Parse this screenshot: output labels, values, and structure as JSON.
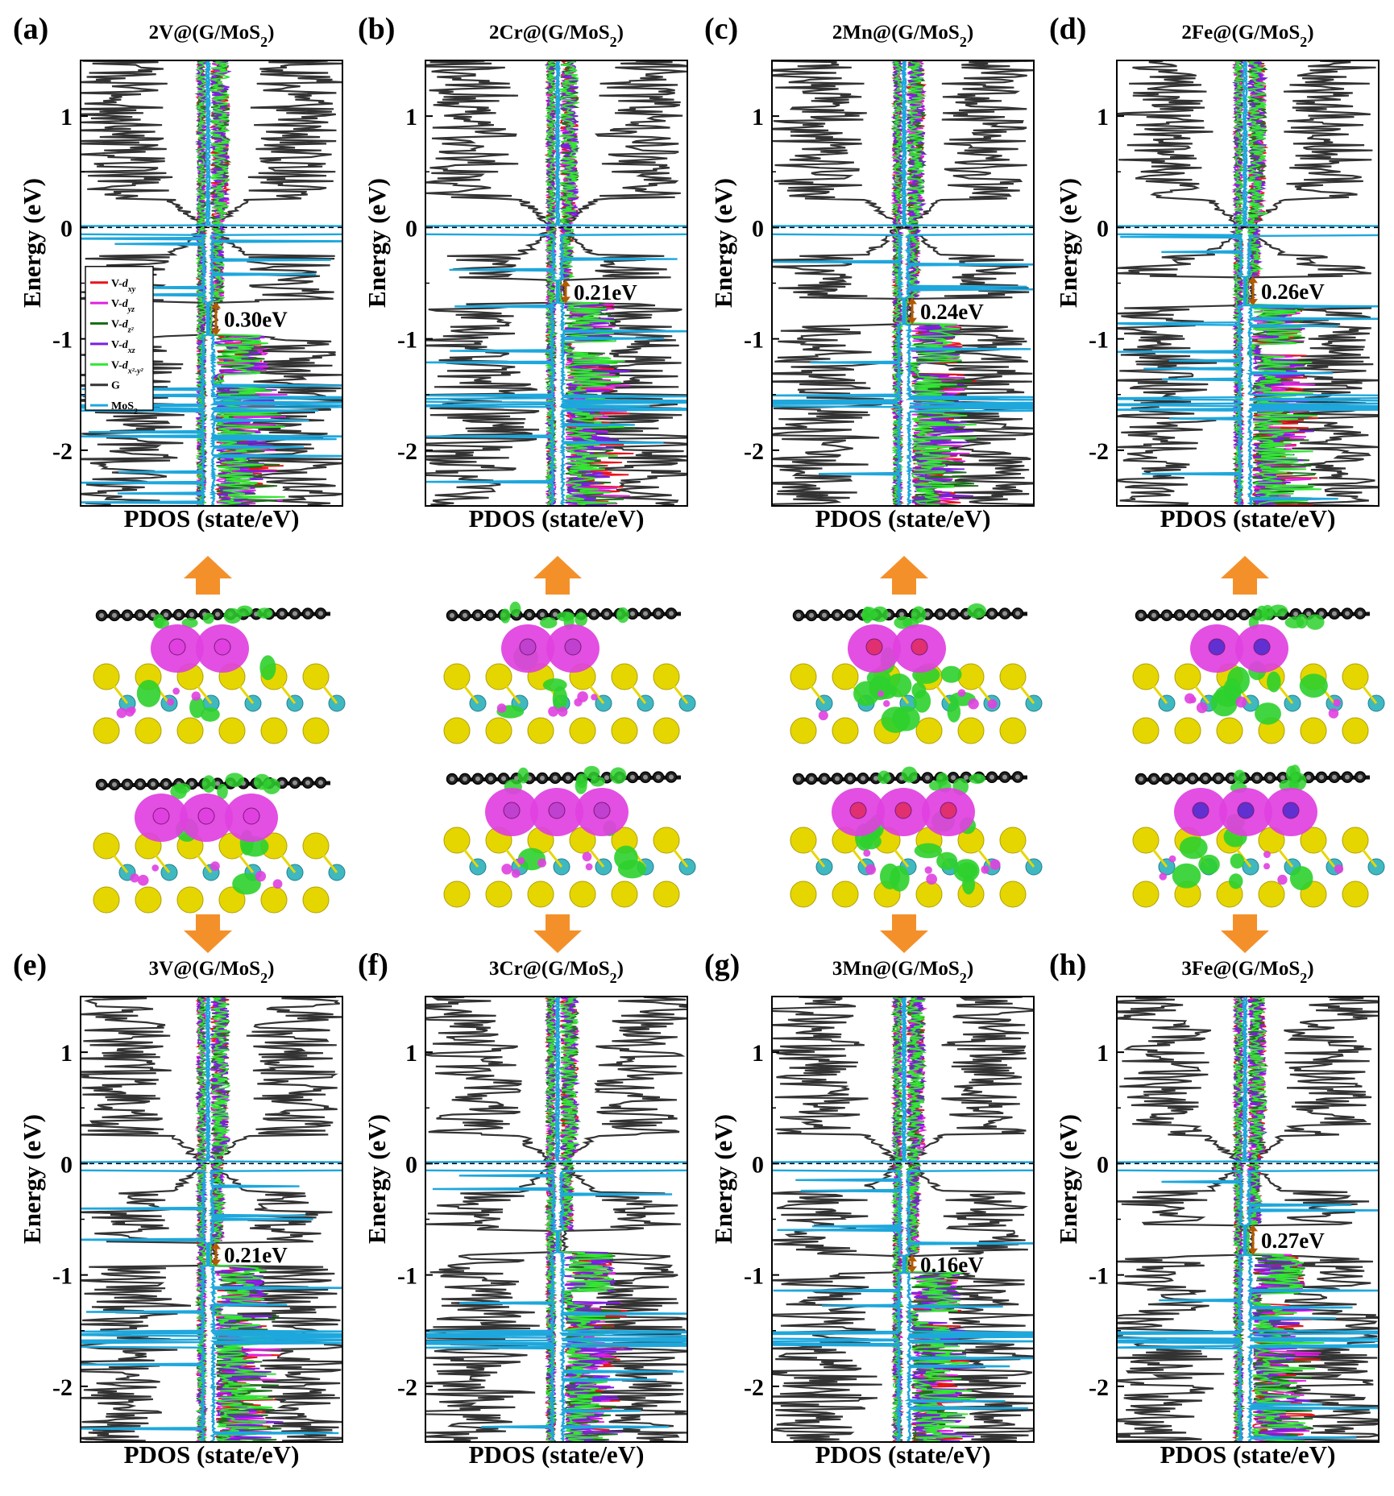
{
  "chart_data": [
    {
      "type": "line",
      "panel_label": "(a)",
      "title": "2V@(G/MoS2)",
      "title_main": "2V@(G/MoS",
      "title_sub": "2",
      "title_tail": ")",
      "xlabel": "PDOS (state/eV)",
      "ylabel": "Energy (eV)",
      "ylim": [
        -2.5,
        1.5
      ],
      "yticks": [
        {
          "value": -2,
          "label": "-2"
        },
        {
          "value": -1,
          "label": "-1"
        },
        {
          "value": 0,
          "label": "0"
        },
        {
          "value": 1,
          "label": "1"
        }
      ],
      "fermi_level": 0,
      "gap": {
        "label": "0.30eV",
        "from": -0.97,
        "to": -0.67
      },
      "legend": {
        "placement": "middle-left",
        "entries": [
          {
            "name": "V-dxy",
            "base": "V-",
            "orbital": "d",
            "sub": "xy",
            "color": "#e8141b"
          },
          {
            "name": "V-dyz",
            "base": "V-",
            "orbital": "d",
            "sub": "yz",
            "color": "#e020e0"
          },
          {
            "name": "V-dz2",
            "base": "V-",
            "orbital": "d",
            "sub": "z²",
            "color": "#1b6e1b"
          },
          {
            "name": "V-dxz",
            "base": "V-",
            "orbital": "d",
            "sub": "xz",
            "color": "#7b1fe0"
          },
          {
            "name": "V-dx2-y2",
            "base": "V-",
            "orbital": "d",
            "sub": "x²-y²",
            "color": "#33e633"
          },
          {
            "name": "G",
            "base": "G",
            "orbital": "",
            "sub": "",
            "color": "#333333"
          },
          {
            "name": "MoS2",
            "base": "MoS",
            "orbital": "",
            "sub": "2",
            "color": "#1ea7dc"
          }
        ]
      }
    },
    {
      "type": "line",
      "panel_label": "(b)",
      "title": "2Cr@(G/MoS2)",
      "title_main": "2Cr@(G/MoS",
      "title_sub": "2",
      "title_tail": ")",
      "xlabel": "PDOS (state/eV)",
      "ylabel": "Energy (eV)",
      "ylim": [
        -2.5,
        1.5
      ],
      "yticks": [
        {
          "value": -2,
          "label": "-2"
        },
        {
          "value": -1,
          "label": "-1"
        },
        {
          "value": 0,
          "label": "0"
        },
        {
          "value": 1,
          "label": "1"
        }
      ],
      "fermi_level": 0,
      "gap": {
        "label": "0.21eV",
        "from": -0.68,
        "to": -0.47
      }
    },
    {
      "type": "line",
      "panel_label": "(c)",
      "title": "2Mn@(G/MoS2)",
      "title_main": "2Mn@(G/MoS",
      "title_sub": "2",
      "title_tail": ")",
      "xlabel": "PDOS (state/eV)",
      "ylabel": "Energy (eV)",
      "ylim": [
        -2.5,
        1.5
      ],
      "yticks": [
        {
          "value": -2,
          "label": "-2"
        },
        {
          "value": -1,
          "label": "-1"
        },
        {
          "value": 0,
          "label": "0"
        },
        {
          "value": 1,
          "label": "1"
        }
      ],
      "fermi_level": 0,
      "gap": {
        "label": "0.24eV",
        "from": -0.87,
        "to": -0.63
      }
    },
    {
      "type": "line",
      "panel_label": "(d)",
      "title": "2Fe@(G/MoS2)",
      "title_main": "2Fe@(G/MoS",
      "title_sub": "2",
      "title_tail": ")",
      "xlabel": "PDOS (state/eV)",
      "ylabel": "Energy (eV)",
      "ylim": [
        -2.5,
        1.5
      ],
      "yticks": [
        {
          "value": -2,
          "label": "-2"
        },
        {
          "value": -1,
          "label": "-1"
        },
        {
          "value": 0,
          "label": "0"
        },
        {
          "value": 1,
          "label": "1"
        }
      ],
      "fermi_level": 0,
      "gap": {
        "label": "0.26eV",
        "from": -0.7,
        "to": -0.44
      }
    },
    {
      "type": "line",
      "panel_label": "(e)",
      "title": "3V@(G/MoS2)",
      "title_main": "3V@(G/MoS",
      "title_sub": "2",
      "title_tail": ")",
      "xlabel": "PDOS (state/eV)",
      "ylabel": "Energy (eV)",
      "ylim": [
        -2.5,
        1.5
      ],
      "yticks": [
        {
          "value": -2,
          "label": "-2"
        },
        {
          "value": -1,
          "label": "-1"
        },
        {
          "value": 0,
          "label": "0"
        },
        {
          "value": 1,
          "label": "1"
        }
      ],
      "fermi_level": 0,
      "gap": {
        "label": "0.21eV",
        "from": -0.92,
        "to": -0.71
      }
    },
    {
      "type": "line",
      "panel_label": "(f)",
      "title": "3Cr@(G/MoS2)",
      "title_main": "3Cr@(G/MoS",
      "title_sub": "2",
      "title_tail": ")",
      "xlabel": "PDOS (state/eV)",
      "ylabel": "Energy (eV)",
      "ylim": [
        -2.5,
        1.5
      ],
      "yticks": [
        {
          "value": -2,
          "label": "-2"
        },
        {
          "value": -1,
          "label": "-1"
        },
        {
          "value": 0,
          "label": "0"
        },
        {
          "value": 1,
          "label": "1"
        }
      ],
      "fermi_level": 0
    },
    {
      "type": "line",
      "panel_label": "(g)",
      "title": "3Mn@(G/MoS2)",
      "title_main": "3Mn@(G/MoS",
      "title_sub": "2",
      "title_tail": ")",
      "xlabel": "PDOS (state/eV)",
      "ylabel": "Energy (eV)",
      "ylim": [
        -2.5,
        1.5
      ],
      "yticks": [
        {
          "value": -2,
          "label": "-2"
        },
        {
          "value": -1,
          "label": "-1"
        },
        {
          "value": 0,
          "label": "0"
        },
        {
          "value": 1,
          "label": "1"
        }
      ],
      "fermi_level": 0,
      "gap": {
        "label": "0.16eV",
        "from": -0.98,
        "to": -0.82
      }
    },
    {
      "type": "line",
      "panel_label": "(h)",
      "title": "3Fe@(G/MoS2)",
      "title_main": "3Fe@(G/MoS",
      "title_sub": "2",
      "title_tail": ")",
      "xlabel": "PDOS (state/eV)",
      "ylabel": "Energy (eV)",
      "ylim": [
        -2.5,
        1.5
      ],
      "yticks": [
        {
          "value": -2,
          "label": "-2"
        },
        {
          "value": -1,
          "label": "-1"
        },
        {
          "value": 0,
          "label": "0"
        },
        {
          "value": 1,
          "label": "1"
        }
      ],
      "fermi_level": 0,
      "gap": {
        "label": "0.27eV",
        "from": -0.82,
        "to": -0.55
      }
    }
  ],
  "colors": {
    "graphene": "#333333",
    "mos2": "#1ea7dc",
    "dxy": "#e8141b",
    "dyz": "#e020e0",
    "dz2": "#1b6e1b",
    "dxz": "#7b1fe0",
    "dx2y2": "#33e633",
    "gap_arrow": "#b35a00",
    "arrow": "#f4902a",
    "charge_accumulation": "#e040e0",
    "charge_depletion": "#2ed02e",
    "sulfur": "#e6d600",
    "molybdenum": "#40b8c0",
    "carbon": "#111111"
  },
  "structures": [
    {
      "panel": "2V",
      "view": "top-row",
      "metal_count": 2,
      "metal_color": "#e040e0",
      "depletion": "low"
    },
    {
      "panel": "2Cr",
      "view": "top-row",
      "metal_count": 2,
      "metal_color": "#c040d0",
      "depletion": "low"
    },
    {
      "panel": "2Mn",
      "view": "top-row",
      "metal_count": 2,
      "metal_color": "#e03070",
      "depletion": "high"
    },
    {
      "panel": "2Fe",
      "view": "top-row",
      "metal_count": 2,
      "metal_color": "#6030d0",
      "depletion": "mid"
    },
    {
      "panel": "3V",
      "view": "bottom-row",
      "metal_count": 3,
      "metal_color": "#e040e0",
      "depletion": "low"
    },
    {
      "panel": "3Cr",
      "view": "bottom-row",
      "metal_count": 3,
      "metal_color": "#c040d0",
      "depletion": "low"
    },
    {
      "panel": "3Mn",
      "view": "bottom-row",
      "metal_count": 3,
      "metal_color": "#e03070",
      "depletion": "high"
    },
    {
      "panel": "3Fe",
      "view": "bottom-row",
      "metal_count": 3,
      "metal_color": "#6030d0",
      "depletion": "mid"
    }
  ]
}
